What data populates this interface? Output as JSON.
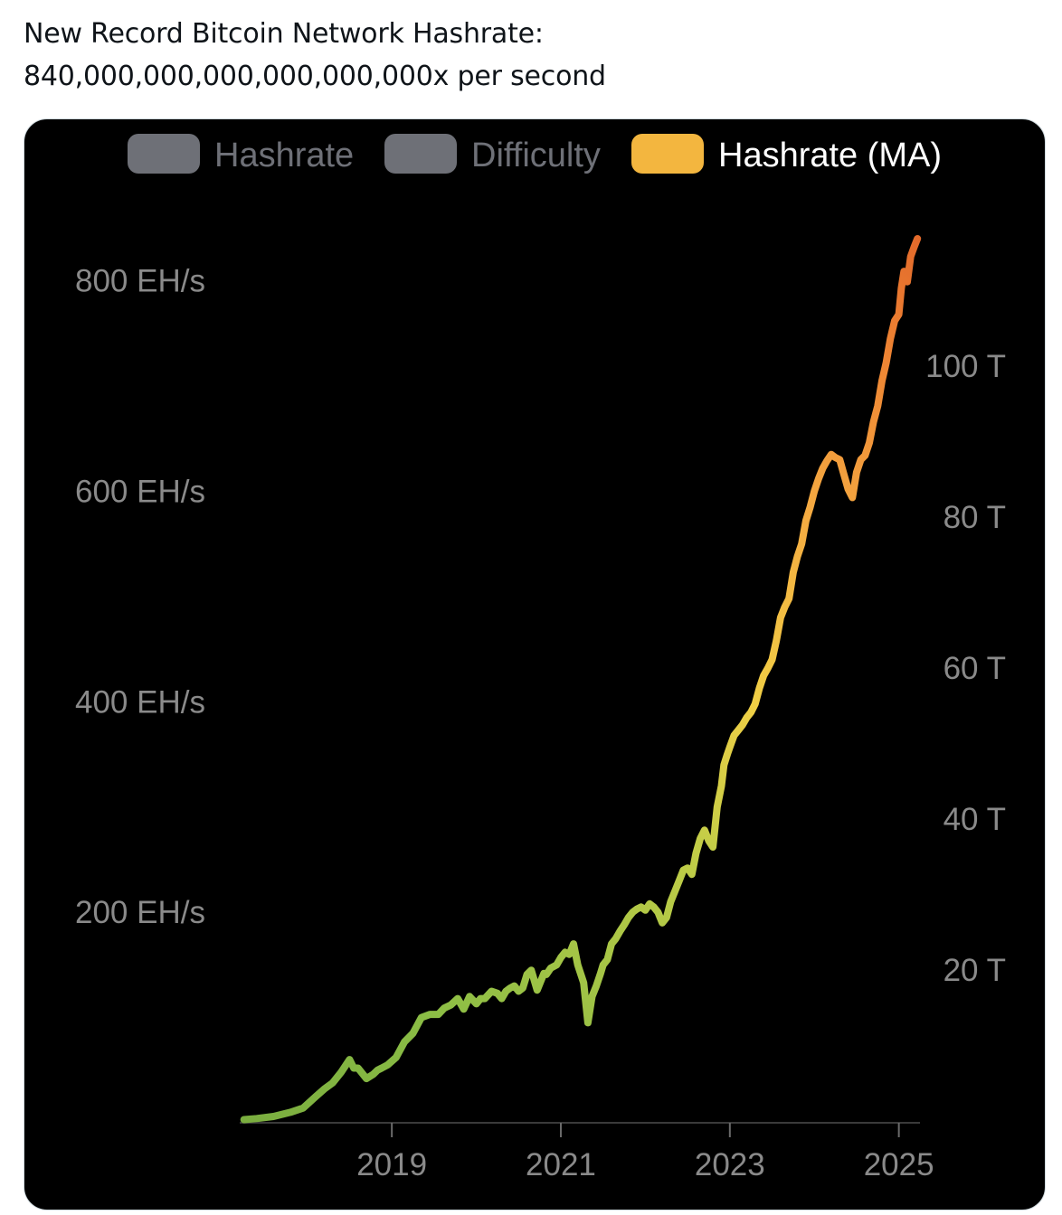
{
  "post": {
    "line1": "New Record Bitcoin Network Hashrate:",
    "line2": "840,000,000,000,000,000,000x per second"
  },
  "chart_data": {
    "type": "line",
    "title": "",
    "xlabel": "",
    "ylabel": "",
    "legend": {
      "placement": "top-center",
      "items": [
        {
          "label": "Hashrate",
          "color": "#6e7077",
          "active": false
        },
        {
          "label": "Difficulty",
          "color": "#6e7077",
          "active": false
        },
        {
          "label": "Hashrate (MA)",
          "color": "#f3b63f",
          "active": true
        }
      ]
    },
    "left_axis": {
      "unit": "EH/s",
      "min": 0,
      "max": 840,
      "ticks": [
        {
          "value": 200,
          "label": "200 EH/s"
        },
        {
          "value": 400,
          "label": "400 EH/s"
        },
        {
          "value": 600,
          "label": "600 EH/s"
        },
        {
          "value": 800,
          "label": "800 EH/s"
        }
      ]
    },
    "right_axis": {
      "unit": "T",
      "ticks": [
        {
          "value": 20,
          "label": "20 T"
        },
        {
          "value": 40,
          "label": "40 T"
        },
        {
          "value": 60,
          "label": "60 T"
        },
        {
          "value": 80,
          "label": "80 T"
        },
        {
          "value": 100,
          "label": "100 T"
        }
      ]
    },
    "x_axis": {
      "min": 2017.2,
      "max": 2025.25,
      "ticks": [
        {
          "value": 2019,
          "label": "2019"
        },
        {
          "value": 2021,
          "label": "2021"
        },
        {
          "value": 2023,
          "label": "2023"
        },
        {
          "value": 2025,
          "label": "2025"
        }
      ]
    },
    "gridlines": false,
    "gradient": {
      "stops": [
        {
          "offset": 0,
          "color": "#7aad3f"
        },
        {
          "offset": 0.18,
          "color": "#8bbd45"
        },
        {
          "offset": 0.45,
          "color": "#c3cd47"
        },
        {
          "offset": 0.58,
          "color": "#f1cf45"
        },
        {
          "offset": 0.75,
          "color": "#f4a941"
        },
        {
          "offset": 0.9,
          "color": "#ee8433"
        },
        {
          "offset": 1,
          "color": "#e36a2b"
        }
      ]
    },
    "series": [
      {
        "name": "Hashrate (MA)",
        "x": [
          2017.25,
          2017.4,
          2017.6,
          2017.8,
          2017.95,
          2018.1,
          2018.2,
          2018.3,
          2018.4,
          2018.5,
          2018.55,
          2018.6,
          2018.7,
          2018.78,
          2018.83,
          2018.88,
          2018.95,
          2019.05,
          2019.15,
          2019.25,
          2019.35,
          2019.45,
          2019.55,
          2019.62,
          2019.7,
          2019.78,
          2019.85,
          2019.92,
          2020.0,
          2020.05,
          2020.1,
          2020.18,
          2020.25,
          2020.3,
          2020.35,
          2020.4,
          2020.45,
          2020.5,
          2020.55,
          2020.6,
          2020.65,
          2020.72,
          2020.8,
          2020.83,
          2020.88,
          2020.95,
          2021.0,
          2021.05,
          2021.1,
          2021.15,
          2021.2,
          2021.27,
          2021.32,
          2021.37,
          2021.42,
          2021.47,
          2021.5,
          2021.55,
          2021.6,
          2021.65,
          2021.7,
          2021.75,
          2021.8,
          2021.85,
          2021.9,
          2021.95,
          2022.0,
          2022.05,
          2022.1,
          2022.15,
          2022.2,
          2022.25,
          2022.3,
          2022.35,
          2022.4,
          2022.45,
          2022.5,
          2022.55,
          2022.6,
          2022.65,
          2022.7,
          2022.75,
          2022.8,
          2022.85,
          2022.9,
          2022.93,
          2022.97,
          2023.0,
          2023.05,
          2023.1,
          2023.15,
          2023.2,
          2023.25,
          2023.3,
          2023.35,
          2023.4,
          2023.45,
          2023.5,
          2023.55,
          2023.6,
          2023.65,
          2023.7,
          2023.75,
          2023.8,
          2023.85,
          2023.9,
          2023.95,
          2024.0,
          2024.05,
          2024.1,
          2024.15,
          2024.2,
          2024.25,
          2024.3,
          2024.35,
          2024.4,
          2024.45,
          2024.5,
          2024.55,
          2024.6,
          2024.65,
          2024.7,
          2024.75,
          2024.8,
          2024.85,
          2024.9,
          2024.95,
          2025.0,
          2025.03,
          2025.06,
          2025.1,
          2025.14,
          2025.18,
          2025.22
        ],
        "values": [
          3,
          4,
          6,
          10,
          14,
          25,
          32,
          38,
          48,
          60,
          52,
          52,
          42,
          46,
          50,
          52,
          55,
          62,
          77,
          85,
          100,
          103,
          103,
          109,
          112,
          118,
          108,
          120,
          113,
          118,
          118,
          125,
          123,
          118,
          125,
          128,
          130,
          125,
          128,
          141,
          145,
          126,
          142,
          141,
          147,
          150,
          157,
          162,
          160,
          170,
          150,
          133,
          95,
          120,
          130,
          142,
          150,
          155,
          170,
          175,
          182,
          188,
          195,
          200,
          203,
          205,
          202,
          208,
          205,
          200,
          190,
          195,
          210,
          220,
          230,
          240,
          242,
          236,
          256,
          270,
          278,
          268,
          262,
          300,
          320,
          340,
          350,
          357,
          368,
          373,
          378,
          385,
          390,
          398,
          413,
          425,
          432,
          440,
          458,
          480,
          490,
          498,
          523,
          538,
          550,
          572,
          585,
          600,
          612,
          622,
          629,
          635,
          632,
          630,
          616,
          602,
          594,
          618,
          630,
          634,
          646,
          666,
          681,
          705,
          722,
          745,
          762,
          768,
          793,
          809,
          799,
          823,
          832,
          840
        ]
      }
    ]
  }
}
